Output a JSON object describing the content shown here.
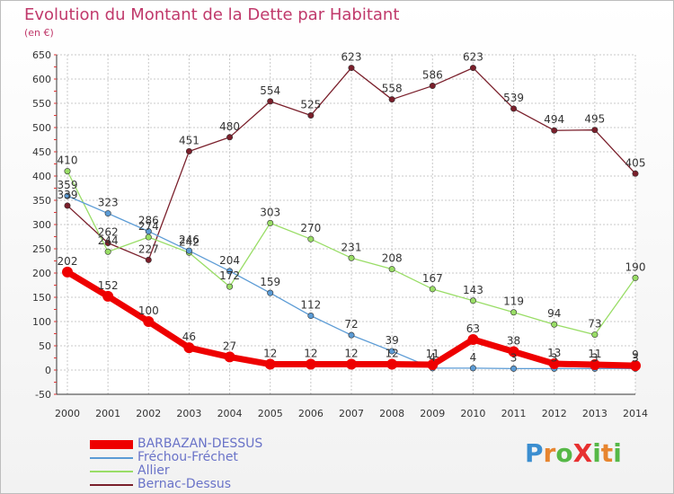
{
  "title": "Evolution du Montant de la Dette par Habitant",
  "unit": "(en €)",
  "logo": {
    "text": "ProXiti"
  },
  "chart_data": {
    "type": "line",
    "title": "Evolution du Montant de la Dette par Habitant",
    "ylabel": "(en €)",
    "ylim": [
      -50,
      650
    ],
    "yticks": [
      -50,
      0,
      50,
      100,
      150,
      200,
      250,
      300,
      350,
      400,
      450,
      500,
      550,
      600,
      650
    ],
    "x": [
      2000,
      2001,
      2002,
      2003,
      2004,
      2005,
      2006,
      2007,
      2008,
      2009,
      2010,
      2011,
      2012,
      2013,
      2014
    ],
    "grid": true,
    "legend_position": "bottom-left",
    "series": [
      {
        "name": "BARBAZAN-DESSUS",
        "color": "#ee0000",
        "width": 7,
        "dot": 6,
        "values": [
          202,
          152,
          100,
          46,
          27,
          12,
          12,
          12,
          12,
          11,
          63,
          38,
          13,
          11,
          9
        ]
      },
      {
        "name": "Fréchou-Fréchet",
        "color": "#5b9bd5",
        "width": 1.3,
        "dot": 3.2,
        "values": [
          359,
          323,
          286,
          246,
          204,
          159,
          112,
          72,
          39,
          4,
          4,
          3,
          3,
          3,
          3
        ]
      },
      {
        "name": "Allier",
        "color": "#99dd66",
        "width": 1.3,
        "dot": 3.2,
        "values": [
          410,
          244,
          274,
          242,
          172,
          303,
          270,
          231,
          208,
          167,
          143,
          119,
          94,
          73,
          190
        ],
        "labels": [
          "410",
          "244",
          "274",
          "242",
          "172",
          "303",
          "270",
          "231",
          "208",
          "167",
          "143",
          "119",
          "94",
          "73",
          "190"
        ]
      },
      {
        "name": "Bernac-Dessus",
        "color": "#7a1f2b",
        "width": 1.3,
        "dot": 3.2,
        "values": [
          339,
          262,
          227,
          451,
          480,
          554,
          525,
          623,
          558,
          586,
          623,
          539,
          494,
          495,
          405
        ]
      }
    ]
  }
}
